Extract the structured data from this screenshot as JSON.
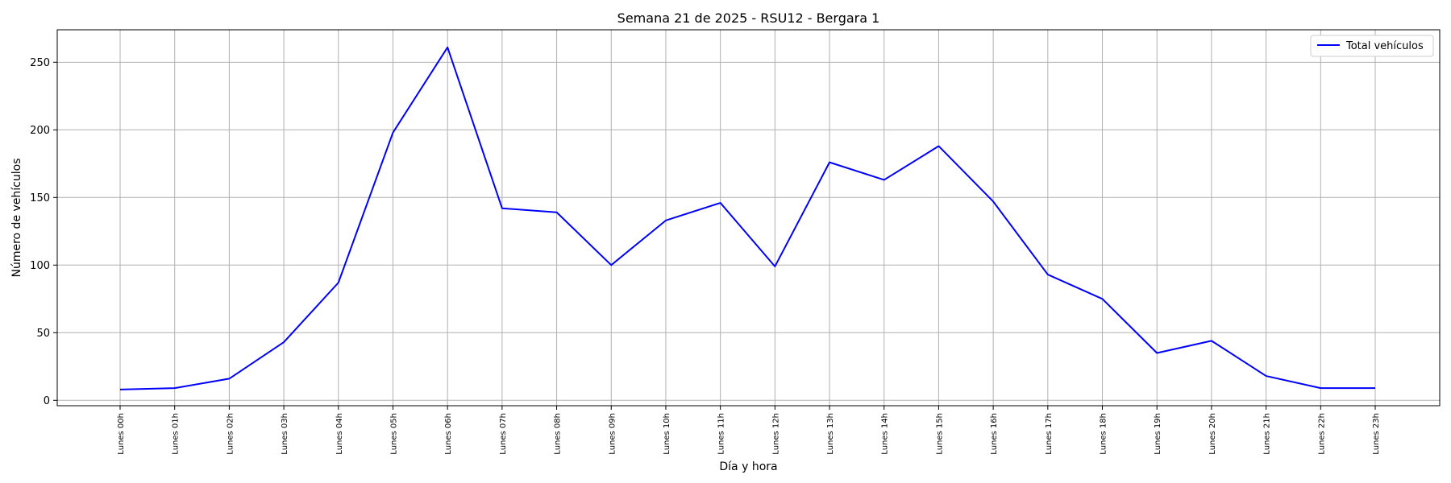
{
  "chart_data": {
    "type": "line",
    "title": "Semana 21 de 2025 - RSU12 - Bergara 1",
    "xlabel": "Día y hora",
    "ylabel": "Número de vehículos",
    "categories": [
      "Lunes 00h",
      "Lunes 01h",
      "Lunes 02h",
      "Lunes 03h",
      "Lunes 04h",
      "Lunes 05h",
      "Lunes 06h",
      "Lunes 07h",
      "Lunes 08h",
      "Lunes 09h",
      "Lunes 10h",
      "Lunes 11h",
      "Lunes 12h",
      "Lunes 13h",
      "Lunes 14h",
      "Lunes 15h",
      "Lunes 16h",
      "Lunes 17h",
      "Lunes 18h",
      "Lunes 19h",
      "Lunes 20h",
      "Lunes 21h",
      "Lunes 22h",
      "Lunes 23h"
    ],
    "series": [
      {
        "name": "Total vehículos",
        "color": "#0000ff",
        "values": [
          8,
          9,
          16,
          43,
          87,
          198,
          261,
          142,
          139,
          100,
          133,
          146,
          99,
          176,
          163,
          188,
          147,
          93,
          75,
          35,
          44,
          18,
          9,
          9
        ]
      }
    ],
    "yticks": [
      0,
      50,
      100,
      150,
      200,
      250
    ],
    "ylim": [
      -4,
      274
    ],
    "grid": true,
    "legend_position": "top-right"
  }
}
